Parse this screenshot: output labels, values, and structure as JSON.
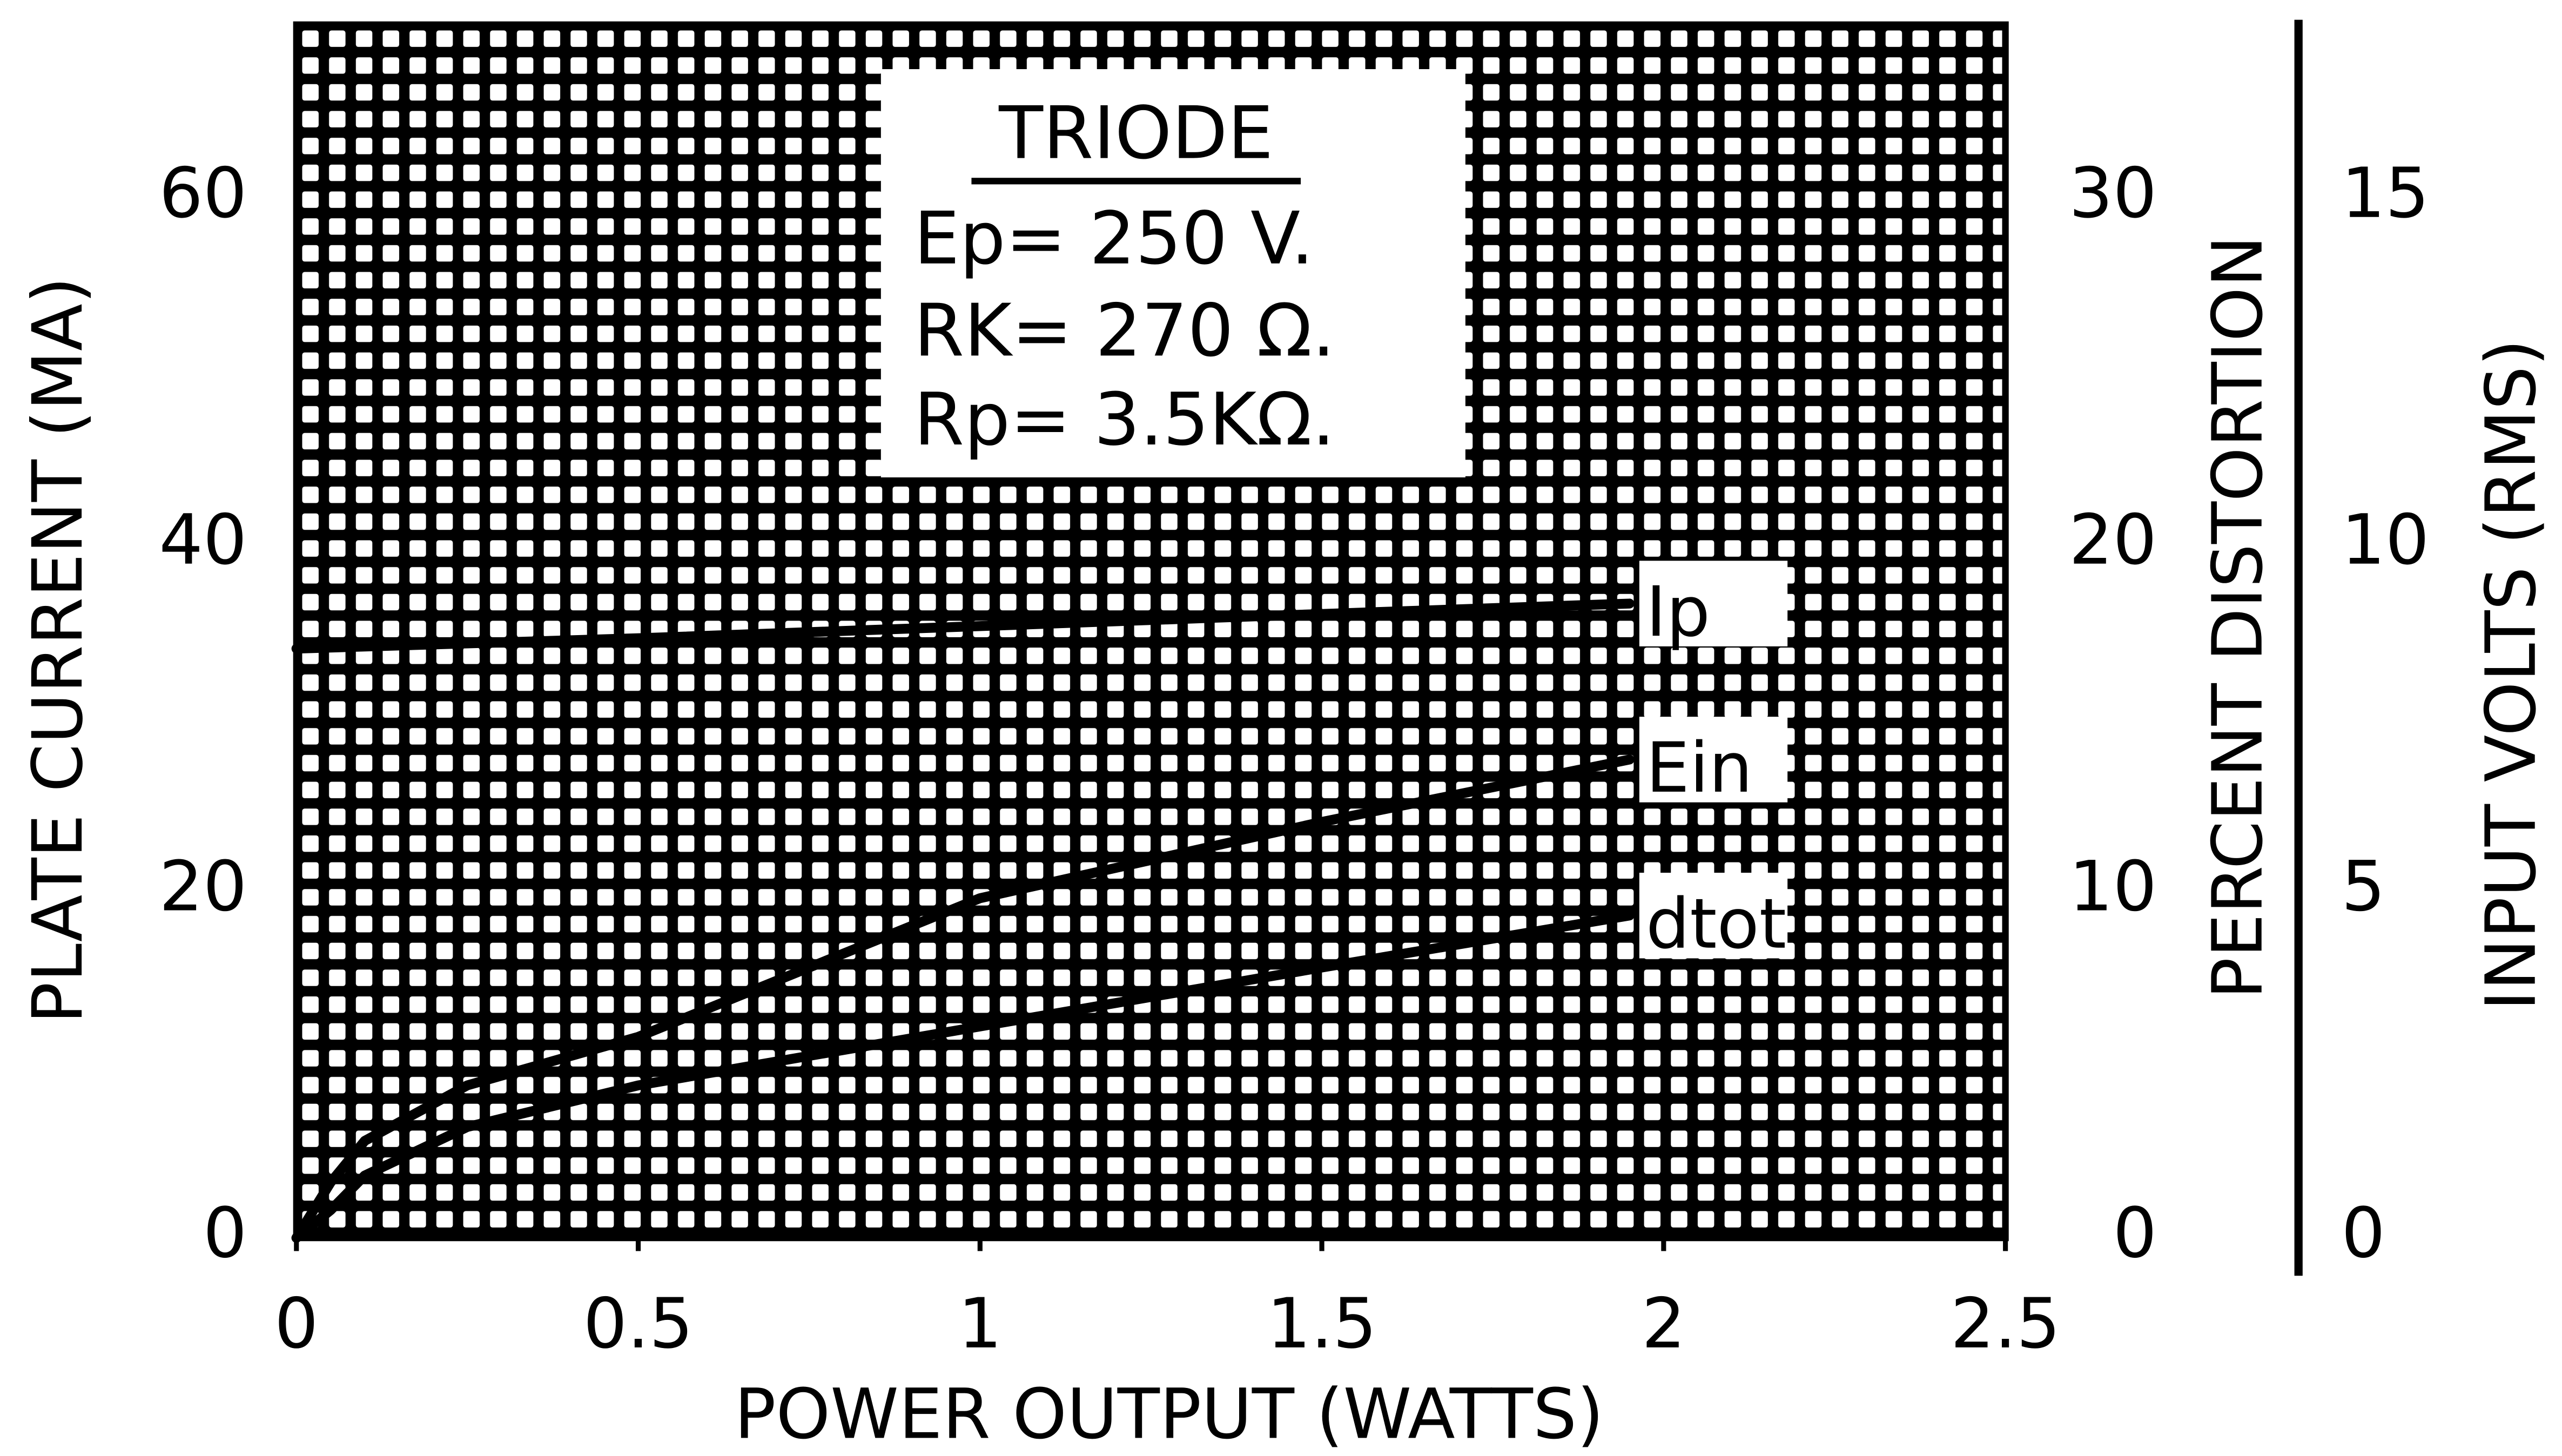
{
  "chart_data": {
    "type": "line",
    "xlabel": "POWER OUTPUT (WATTS)",
    "ylabel": "PLATE CURRENT (MA)",
    "y2label": "PERCENT DISTORTION",
    "y3label": "INPUT VOLTS (RMS)",
    "annotations": [
      "TRIODE",
      "Ep= 250 V.",
      "RK= 270 Ω.",
      "Rp= 3.5KΩ."
    ],
    "xlim": [
      0,
      2.5
    ],
    "xticks": [
      0,
      0.5,
      1,
      1.5,
      2,
      2.5
    ],
    "ylim": [
      0,
      70
    ],
    "yticks": [
      0,
      20,
      40,
      60
    ],
    "y2lim": [
      0,
      35
    ],
    "y2ticks": [
      0,
      10,
      20,
      30
    ],
    "y3lim": [
      0,
      17.5
    ],
    "y3ticks": [
      0,
      5,
      10,
      15
    ],
    "grid": true,
    "color": "#000000",
    "series": [
      {
        "name": "Ip",
        "axis": "y",
        "x": [
          0,
          0.5,
          1,
          1.5,
          1.95
        ],
        "values": [
          34,
          34.6,
          35.3,
          36,
          36.6
        ]
      },
      {
        "name": "Ein",
        "axis": "y3",
        "x": [
          0,
          0.05,
          0.1,
          0.25,
          0.5,
          1,
          1.5,
          1.95
        ],
        "values": [
          0,
          0.8,
          1.4,
          2.2,
          2.9,
          4.9,
          6,
          6.9
        ]
      },
      {
        "name": "dtot",
        "axis": "y2",
        "x": [
          0,
          0.05,
          0.1,
          0.25,
          0.5,
          1,
          1.5,
          1.95
        ],
        "values": [
          0,
          0.8,
          1.8,
          3.2,
          4.4,
          6.1,
          7.8,
          9.3
        ]
      }
    ]
  }
}
